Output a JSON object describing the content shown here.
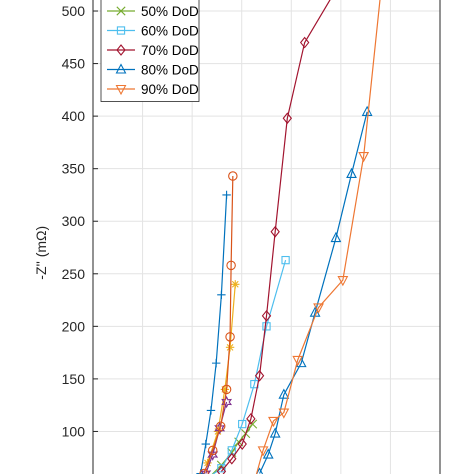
{
  "chart_data": {
    "type": "line",
    "title": "",
    "xlabel": "",
    "ylabel": "-Z'' (mΩ)",
    "ylim": [
      50,
      520
    ],
    "xlim": [
      0,
      1
    ],
    "yticks": [
      100,
      150,
      200,
      250,
      300,
      350,
      400,
      450,
      500
    ],
    "grid": true,
    "legend_position": "top-left",
    "series": [
      {
        "name": "",
        "color": "#0072BD",
        "marker": "plus",
        "x": [
          0.31,
          0.325,
          0.34,
          0.355,
          0.37,
          0.385
        ],
        "y": [
          60,
          88,
          120,
          165,
          230,
          325
        ]
      },
      {
        "name": "",
        "color": "#EDB120",
        "marker": "asterisk",
        "x": [
          0.33,
          0.36,
          0.38,
          0.395,
          0.41
        ],
        "y": [
          70,
          100,
          140,
          180,
          240
        ]
      },
      {
        "name": "",
        "color": "#7E2F8E",
        "marker": "hexagram",
        "x": [
          0.325,
          0.345,
          0.365,
          0.385
        ],
        "y": [
          60,
          78,
          103,
          128
        ]
      },
      {
        "name": "",
        "color": "#D95319",
        "marker": "circle",
        "x": [
          0.32,
          0.345,
          0.368,
          0.385,
          0.395,
          0.398,
          0.403
        ],
        "y": [
          60,
          82,
          105,
          140,
          190,
          258,
          343
        ]
      },
      {
        "name": "50% DoD",
        "color": "#77AC30",
        "marker": "x",
        "x": [
          0.34,
          0.37,
          0.4,
          0.42,
          0.44,
          0.46
        ],
        "y": [
          58,
          68,
          80,
          90,
          98,
          107
        ]
      },
      {
        "name": "60% DoD",
        "color": "#4DBEEE",
        "marker": "square",
        "x": [
          0.34,
          0.37,
          0.4,
          0.43,
          0.465,
          0.5,
          0.555
        ],
        "y": [
          58,
          65,
          82,
          107,
          145,
          200,
          263
        ]
      },
      {
        "name": "70% DoD",
        "color": "#A2142F",
        "marker": "diamond",
        "x": [
          0.37,
          0.4,
          0.43,
          0.455,
          0.48,
          0.5,
          0.525,
          0.56,
          0.61,
          0.7
        ],
        "y": [
          62,
          74,
          88,
          112,
          153,
          210,
          290,
          398,
          470,
          520
        ]
      },
      {
        "name": "80% DoD",
        "color": "#0072BD",
        "marker": "triangle-up",
        "x": [
          0.48,
          0.505,
          0.525,
          0.55,
          0.6,
          0.64,
          0.7,
          0.745,
          0.79
        ],
        "y": [
          60,
          78,
          98,
          135,
          165,
          213,
          284,
          345,
          404
        ]
      },
      {
        "name": "90% DoD",
        "color": "#EE7733",
        "marker": "triangle-down",
        "x": [
          0.47,
          0.49,
          0.52,
          0.55,
          0.59,
          0.65,
          0.72,
          0.78,
          0.83
        ],
        "y": [
          58,
          82,
          110,
          118,
          168,
          218,
          244,
          362,
          520
        ]
      }
    ]
  }
}
